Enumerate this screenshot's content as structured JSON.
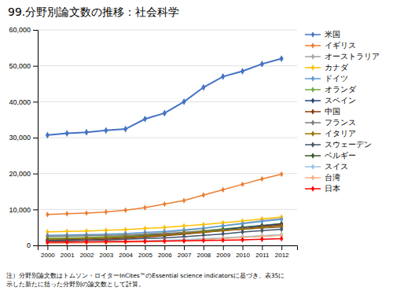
{
  "chart_data": {
    "type": "line",
    "title": "99.分野別論文数の推移：社会科学",
    "x": [
      2000,
      2001,
      2002,
      2003,
      2004,
      2005,
      2006,
      2007,
      2008,
      2009,
      2010,
      2011,
      2012
    ],
    "xlim": [
      1999.5,
      2012.8
    ],
    "xticks": [
      2000,
      2001,
      2002,
      2003,
      2004,
      2005,
      2006,
      2007,
      2008,
      2009,
      2010,
      2011,
      2012
    ],
    "ylim": [
      0,
      60000
    ],
    "yticks": [
      0,
      {
        "value": 10000,
        "label": "10,000"
      },
      {
        "value": 20000,
        "label": "20,000"
      },
      {
        "value": 30000,
        "label": "30,000"
      },
      {
        "value": 40000,
        "label": "40,000"
      },
      {
        "value": 50000,
        "label": "50,000"
      },
      {
        "value": 60000,
        "label": "60,000"
      }
    ],
    "grid": true,
    "legend": "right",
    "marker": "diamond",
    "series": [
      {
        "name": "米国",
        "color": "#4472C4",
        "values": [
          30700,
          31200,
          31500,
          32000,
          32400,
          35200,
          36800,
          40000,
          44000,
          47000,
          48500,
          50500,
          52000
        ]
      },
      {
        "name": "イギリス",
        "color": "#ED7D31",
        "values": [
          8600,
          8800,
          9000,
          9300,
          9800,
          10500,
          11500,
          12500,
          14000,
          15500,
          17000,
          18500,
          19800
        ]
      },
      {
        "name": "オーストラリア",
        "color": "#A5A5A5",
        "values": [
          1800,
          1900,
          2100,
          2300,
          2700,
          3200,
          3600,
          4100,
          4700,
          5500,
          6200,
          6900,
          7500
        ]
      },
      {
        "name": "カナダ",
        "color": "#FFC000",
        "values": [
          3800,
          3900,
          4000,
          4200,
          4400,
          4700,
          5000,
          5400,
          5800,
          6300,
          6800,
          7400,
          7900
        ]
      },
      {
        "name": "ドイツ",
        "color": "#5B9BD5",
        "values": [
          2800,
          2900,
          3000,
          3100,
          3300,
          3600,
          3900,
          4300,
          4800,
          5400,
          6000,
          6700,
          7200
        ]
      },
      {
        "name": "オランダ",
        "color": "#70AD47",
        "values": [
          2000,
          2100,
          2200,
          2400,
          2600,
          2900,
          3200,
          3600,
          4100,
          4600,
          5100,
          5600,
          6100
        ]
      },
      {
        "name": "スペイン",
        "color": "#264478",
        "values": [
          1500,
          1600,
          1800,
          2000,
          2300,
          2700,
          3000,
          3400,
          3900,
          4400,
          5000,
          5500,
          6000
        ]
      },
      {
        "name": "中国",
        "color": "#843C0C",
        "values": [
          1200,
          1300,
          1500,
          1700,
          2000,
          2300,
          2700,
          3100,
          3600,
          4100,
          4600,
          5200,
          5700
        ]
      },
      {
        "name": "フランス",
        "color": "#7B7B7B",
        "values": [
          2500,
          2600,
          2700,
          2800,
          2900,
          3100,
          3300,
          3600,
          3900,
          4200,
          4500,
          4800,
          5100
        ]
      },
      {
        "name": "イタリア",
        "color": "#997300",
        "values": [
          1700,
          1800,
          1900,
          2100,
          2300,
          2600,
          2900,
          3300,
          3700,
          4100,
          4500,
          4900,
          5300
        ]
      },
      {
        "name": "スウェーデン",
        "color": "#44546A",
        "values": [
          1300,
          1350,
          1400,
          1500,
          1700,
          1900,
          2100,
          2400,
          2800,
          3200,
          3700,
          4100,
          4500
        ]
      },
      {
        "name": "ベルギー",
        "color": "#375623",
        "values": [
          700,
          750,
          800,
          870,
          980,
          1100,
          1250,
          1450,
          1700,
          2000,
          2300,
          2600,
          2900
        ]
      },
      {
        "name": "スイス",
        "color": "#9DC3E6",
        "values": [
          800,
          850,
          900,
          980,
          1100,
          1250,
          1400,
          1600,
          1850,
          2100,
          2400,
          2700,
          3000
        ]
      },
      {
        "name": "台湾",
        "color": "#F4B183",
        "values": [
          600,
          650,
          700,
          780,
          880,
          1000,
          1150,
          1350,
          1600,
          1900,
          2200,
          2500,
          2800
        ]
      },
      {
        "name": "日本",
        "color": "#FF0000",
        "values": [
          900,
          950,
          1000,
          1050,
          1100,
          1150,
          1200,
          1280,
          1350,
          1450,
          1550,
          1700,
          1850
        ]
      }
    ],
    "annotations": [
      "注）分野別論文数はトムソン・ロイターInCites™のEssential science indicatorsに基づき、表35に",
      "示した新たに括った分野別の論文数として計算。"
    ]
  }
}
